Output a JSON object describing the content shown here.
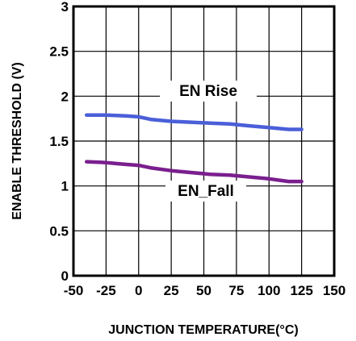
{
  "chart_data": {
    "type": "line",
    "title": "",
    "xlabel": "JUNCTION TEMPERATURE(°C)",
    "ylabel": "ENABLE THRESHOLD (V)",
    "xlim": [
      -50,
      150
    ],
    "ylim": [
      0,
      3
    ],
    "x_ticks": [
      "-50",
      "-25",
      "0",
      "25",
      "50",
      "75",
      "100",
      "125",
      "150"
    ],
    "y_ticks": [
      "0",
      "0.5",
      "1",
      "1.5",
      "2",
      "2.5",
      "3"
    ],
    "grid": true,
    "series": [
      {
        "name": "EN Rise",
        "color": "#4a5fd8",
        "x": [
          -40,
          -25,
          -10,
          0,
          10,
          25,
          40,
          55,
          70,
          85,
          100,
          115,
          125
        ],
        "y": [
          1.79,
          1.79,
          1.78,
          1.77,
          1.74,
          1.72,
          1.71,
          1.7,
          1.69,
          1.67,
          1.65,
          1.63,
          1.63
        ]
      },
      {
        "name": "EN_Fall",
        "color": "#7a1f8e",
        "x": [
          -40,
          -25,
          -10,
          0,
          10,
          25,
          40,
          55,
          70,
          85,
          100,
          115,
          125
        ],
        "y": [
          1.27,
          1.26,
          1.24,
          1.23,
          1.2,
          1.17,
          1.15,
          1.13,
          1.12,
          1.1,
          1.08,
          1.05,
          1.05
        ]
      }
    ]
  }
}
